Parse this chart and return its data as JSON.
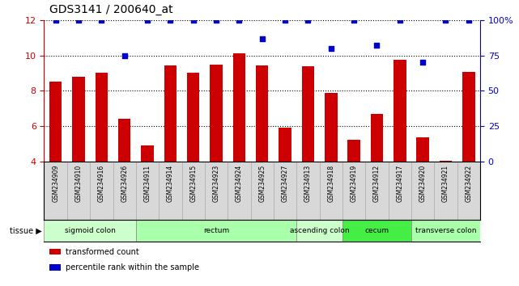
{
  "title": "GDS3141 / 200640_at",
  "samples": [
    "GSM234909",
    "GSM234910",
    "GSM234916",
    "GSM234926",
    "GSM234911",
    "GSM234914",
    "GSM234915",
    "GSM234923",
    "GSM234924",
    "GSM234925",
    "GSM234927",
    "GSM234913",
    "GSM234918",
    "GSM234919",
    "GSM234912",
    "GSM234917",
    "GSM234920",
    "GSM234921",
    "GSM234922"
  ],
  "bar_values": [
    8.5,
    8.8,
    9.0,
    6.4,
    4.9,
    9.45,
    9.0,
    9.5,
    10.1,
    9.45,
    5.9,
    9.4,
    7.9,
    5.25,
    6.7,
    9.75,
    5.35,
    4.05,
    9.05
  ],
  "scatter_pct": [
    100,
    100,
    100,
    75,
    100,
    100,
    100,
    100,
    100,
    87,
    100,
    100,
    80,
    100,
    82,
    100,
    70,
    100,
    100
  ],
  "ylim_left": [
    4,
    12
  ],
  "ylim_right": [
    0,
    100
  ],
  "yticks_left": [
    4,
    6,
    8,
    10,
    12
  ],
  "yticks_right": [
    0,
    25,
    50,
    75,
    100
  ],
  "bar_color": "#cc0000",
  "scatter_color": "#0000cc",
  "tissue_groups": [
    {
      "label": "sigmoid colon",
      "start": 0,
      "end": 3,
      "color": "#ccffcc"
    },
    {
      "label": "rectum",
      "start": 4,
      "end": 10,
      "color": "#aaffaa"
    },
    {
      "label": "ascending colon",
      "start": 11,
      "end": 12,
      "color": "#ccffcc"
    },
    {
      "label": "cecum",
      "start": 13,
      "end": 15,
      "color": "#44ee44"
    },
    {
      "label": "transverse colon",
      "start": 16,
      "end": 18,
      "color": "#aaffaa"
    }
  ],
  "tick_label_color_left": "#cc0000",
  "tick_label_color_right": "#0000cc",
  "tick_label_fontsize": 8,
  "sample_fontsize": 5.5,
  "title_fontsize": 10,
  "tissue_fontsize": 6.5,
  "legend_fontsize": 7,
  "grid_linestyle": "dotted",
  "grid_color": "black",
  "grid_linewidth": 0.8,
  "bar_width": 0.55
}
